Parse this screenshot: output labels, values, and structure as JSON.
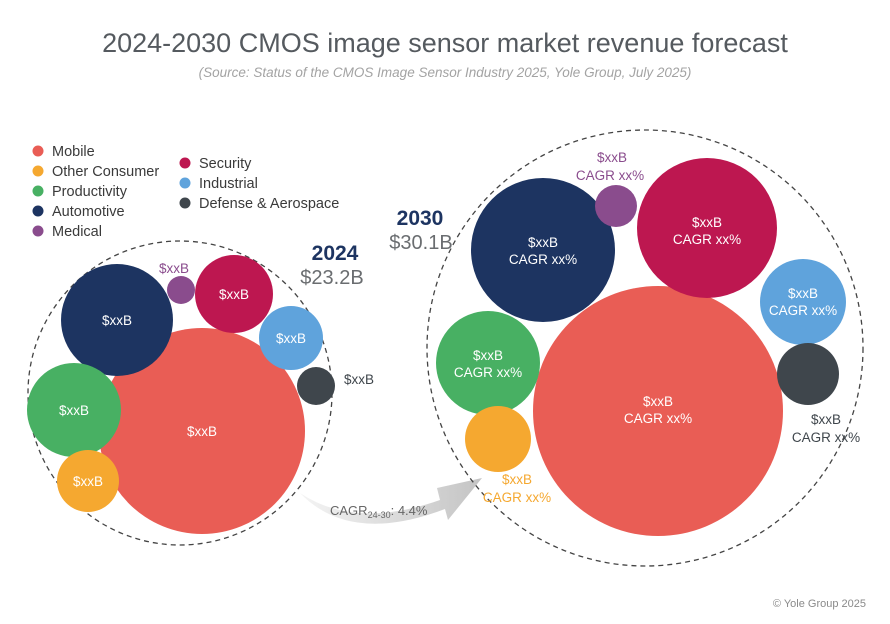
{
  "chart_data": {
    "type": "bubble",
    "title": "2024-2030 CMOS image sensor market revenue forecast",
    "subtitle": "(Source: Status of the CMOS Image Sensor Industry 2025, Yole Group, July 2025)",
    "legend": [
      {
        "name": "Mobile",
        "color": "#e95d55"
      },
      {
        "name": "Other Consumer",
        "color": "#f5a830"
      },
      {
        "name": "Productivity",
        "color": "#48b063"
      },
      {
        "name": "Automotive",
        "color": "#1d3461"
      },
      {
        "name": "Medical",
        "color": "#8a4c8d"
      },
      {
        "name": "Security",
        "color": "#bd1750"
      },
      {
        "name": "Industrial",
        "color": "#5fa3dc"
      },
      {
        "name": "Defense & Aerospace",
        "color": "#3f464c"
      }
    ],
    "groups": [
      {
        "year": "2024",
        "total": "$23.2B",
        "bubbles": [
          {
            "segment": "Mobile",
            "label": "$xxB"
          },
          {
            "segment": "Automotive",
            "label": "$xxB"
          },
          {
            "segment": "Security",
            "label": "$xxB"
          },
          {
            "segment": "Medical",
            "label": "$xxB"
          },
          {
            "segment": "Industrial",
            "label": "$xxB"
          },
          {
            "segment": "Defense & Aerospace",
            "label": "$xxB"
          },
          {
            "segment": "Productivity",
            "label": "$xxB"
          },
          {
            "segment": "Other Consumer",
            "label": "$xxB"
          }
        ]
      },
      {
        "year": "2030",
        "total": "$30.1B",
        "bubbles": [
          {
            "segment": "Mobile",
            "label": "$xxB",
            "cagr": "CAGR xx%"
          },
          {
            "segment": "Automotive",
            "label": "$xxB",
            "cagr": "CAGR xx%"
          },
          {
            "segment": "Security",
            "label": "$xxB",
            "cagr": "CAGR xx%"
          },
          {
            "segment": "Medical",
            "label": "$xxB",
            "cagr": "CAGR xx%"
          },
          {
            "segment": "Industrial",
            "label": "$xxB",
            "cagr": "CAGR xx%"
          },
          {
            "segment": "Defense & Aerospace",
            "label": "$xxB",
            "cagr": "CAGR xx%"
          },
          {
            "segment": "Productivity",
            "label": "$xxB",
            "cagr": "CAGR xx%"
          },
          {
            "segment": "Other Consumer",
            "label": "$xxB",
            "cagr": "CAGR xx%"
          }
        ]
      }
    ],
    "cagr_arrow": {
      "prefix": "CAGR",
      "subscript": "24-30",
      "suffix": ": 4.4%"
    }
  },
  "copyright": "© Yole Group 2025"
}
